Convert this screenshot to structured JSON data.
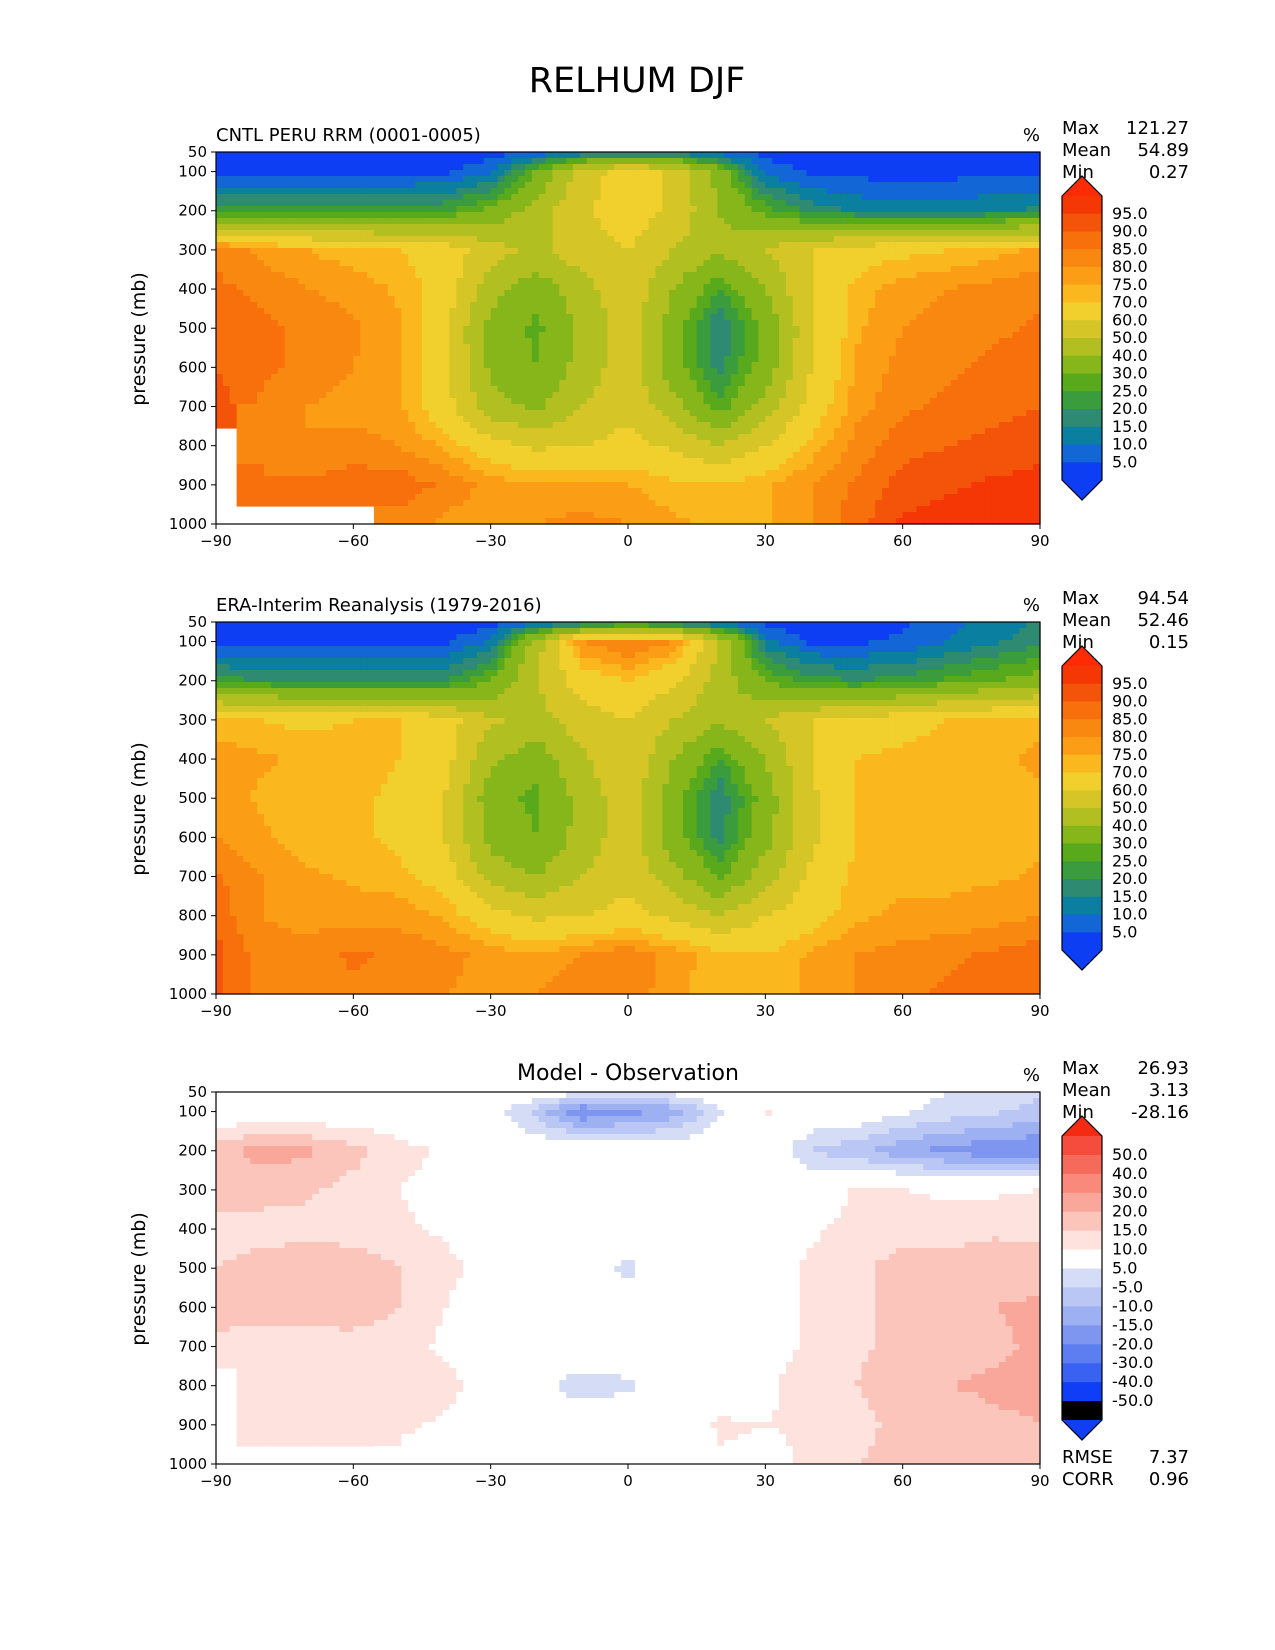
{
  "title": "RELHUM DJF",
  "colors": {
    "field": [
      "#0e3ef4",
      "#1266d6",
      "#0a7fa0",
      "#2f8a72",
      "#3b9c3e",
      "#58a91c",
      "#86b61a",
      "#b1c020",
      "#d5c526",
      "#f1cf2c",
      "#fbb81e",
      "#fb9e15",
      "#f98811",
      "#f7700c",
      "#f45409",
      "#f43705",
      "#ff2b04"
    ],
    "diff": [
      "#0f3ef6",
      "#3a62f2",
      "#5d7ef0",
      "#7f96f0",
      "#9db0f2",
      "#bac6f4",
      "#d5ddf6",
      "#ffffff",
      "#fde2de",
      "#fbc5bb",
      "#f9a79a",
      "#f8897b",
      "#f66a5c",
      "#f54c3e",
      "#f42b12"
    ]
  },
  "panels": [
    {
      "title": "CNTL PERU RRM (0001-0005)",
      "units": "%",
      "stats": {
        "max_label": "Max",
        "max_value": "121.27",
        "mean_label": "Mean",
        "mean_value": "54.89",
        "min_label": "Min",
        "min_value": "0.27"
      },
      "ylabel": "pressure (mb)",
      "colorbar": {
        "palette": "field",
        "labels": [
          "95.0",
          "90.0",
          "85.0",
          "80.0",
          "75.0",
          "70.0",
          "60.0",
          "50.0",
          "40.0",
          "30.0",
          "25.0",
          "20.0",
          "15.0",
          "10.0",
          "5.0"
        ]
      }
    },
    {
      "title": "ERA-Interim Reanalysis (1979-2016)",
      "units": "%",
      "stats": {
        "max_label": "Max",
        "max_value": "94.54",
        "mean_label": "Mean",
        "mean_value": "52.46",
        "min_label": "Min",
        "min_value": "0.15"
      },
      "ylabel": "pressure (mb)",
      "colorbar": {
        "palette": "field",
        "labels": [
          "95.0",
          "90.0",
          "85.0",
          "80.0",
          "75.0",
          "70.0",
          "60.0",
          "50.0",
          "40.0",
          "30.0",
          "25.0",
          "20.0",
          "15.0",
          "10.0",
          "5.0"
        ]
      }
    },
    {
      "title": "Model - Observation",
      "units": "%",
      "stats": {
        "max_label": "Max",
        "max_value": "26.93",
        "mean_label": "Mean",
        "mean_value": "3.13",
        "min_label": "Min",
        "min_value": "-28.16"
      },
      "ylabel": "pressure (mb)",
      "colorbar": {
        "palette": "diff",
        "labels": [
          "50.0",
          "40.0",
          "30.0",
          "20.0",
          "15.0",
          "10.0",
          "5.0",
          "-5.0",
          "-10.0",
          "-15.0",
          "-20.0",
          "-30.0",
          "-40.0",
          "-50.0"
        ]
      },
      "extra": {
        "rmse_label": "RMSE",
        "rmse_value": "7.37",
        "corr_label": "CORR",
        "corr_value": "0.96"
      }
    }
  ],
  "chart_data": [
    {
      "type": "heatmap",
      "title": "CNTL PERU RRM (0001-0005)",
      "xlabel": "",
      "ylabel": "pressure (mb)",
      "x_ticks": [
        -90,
        -60,
        -30,
        0,
        30,
        60,
        90
      ],
      "x_tick_labels": [
        "−90",
        "−60",
        "−30",
        "0",
        "30",
        "60",
        "90"
      ],
      "y_ticks": [
        50,
        100,
        200,
        300,
        400,
        500,
        600,
        700,
        800,
        900,
        1000
      ],
      "y_tick_labels": [
        "50",
        "100",
        "200",
        "300",
        "400",
        "500",
        "600",
        "700",
        "800",
        "900",
        "1000"
      ],
      "xlim": [
        -90,
        90
      ],
      "ylim": [
        1000,
        50
      ],
      "levels": [
        5,
        10,
        15,
        20,
        25,
        30,
        40,
        50,
        60,
        70,
        75,
        80,
        85,
        90,
        95
      ],
      "lat": [
        -90,
        -80,
        -70,
        -60,
        -50,
        -40,
        -30,
        -20,
        -10,
        0,
        10,
        20,
        30,
        40,
        50,
        60,
        70,
        80,
        90
      ],
      "pressure": [
        50,
        100,
        200,
        300,
        400,
        500,
        600,
        700,
        800,
        900,
        1000
      ],
      "values": [
        [
          2,
          2,
          2,
          2,
          2,
          2,
          3,
          5,
          8,
          12,
          10,
          6,
          3,
          2,
          2,
          2,
          2,
          3,
          3
        ],
        [
          3,
          3,
          3,
          3,
          3,
          4,
          8,
          30,
          55,
          65,
          58,
          35,
          8,
          4,
          3,
          3,
          3,
          4,
          4
        ],
        [
          22,
          22,
          22,
          22,
          22,
          24,
          32,
          45,
          58,
          66,
          58,
          40,
          28,
          18,
          14,
          12,
          12,
          14,
          16
        ],
        [
          84,
          78,
          75,
          72,
          70,
          66,
          54,
          48,
          56,
          60,
          50,
          42,
          50,
          60,
          66,
          68,
          70,
          73,
          76
        ],
        [
          86,
          84,
          80,
          78,
          74,
          66,
          44,
          34,
          46,
          58,
          40,
          24,
          40,
          60,
          72,
          78,
          80,
          82,
          84
        ],
        [
          88,
          86,
          84,
          81,
          76,
          62,
          36,
          28,
          42,
          56,
          34,
          15,
          32,
          58,
          74,
          80,
          82,
          84,
          86
        ],
        [
          90,
          86,
          84,
          80,
          76,
          62,
          38,
          30,
          44,
          56,
          34,
          18,
          34,
          60,
          76,
          82,
          84,
          86,
          88
        ],
        [
          93,
          84,
          80,
          78,
          76,
          64,
          44,
          38,
          50,
          58,
          44,
          26,
          44,
          64,
          78,
          84,
          86,
          88,
          90
        ],
        [
          null,
          80,
          80,
          82,
          80,
          74,
          64,
          58,
          60,
          63,
          58,
          50,
          60,
          72,
          82,
          88,
          90,
          92,
          94
        ],
        [
          null,
          86,
          86,
          88,
          88,
          84,
          78,
          76,
          75,
          75,
          72,
          70,
          74,
          80,
          86,
          92,
          94,
          96,
          96
        ],
        [
          null,
          null,
          null,
          null,
          84,
          78,
          78,
          80,
          82,
          80,
          76,
          74,
          74,
          80,
          88,
          96,
          98,
          98,
          98
        ]
      ]
    },
    {
      "type": "heatmap",
      "title": "ERA-Interim Reanalysis (1979-2016)",
      "xlabel": "",
      "ylabel": "pressure (mb)",
      "x_ticks": [
        -90,
        -60,
        -30,
        0,
        30,
        60,
        90
      ],
      "x_tick_labels": [
        "−90",
        "−60",
        "−30",
        "0",
        "30",
        "60",
        "90"
      ],
      "y_ticks": [
        50,
        100,
        200,
        300,
        400,
        500,
        600,
        700,
        800,
        900,
        1000
      ],
      "y_tick_labels": [
        "50",
        "100",
        "200",
        "300",
        "400",
        "500",
        "600",
        "700",
        "800",
        "900",
        "1000"
      ],
      "xlim": [
        -90,
        90
      ],
      "ylim": [
        1000,
        50
      ],
      "levels": [
        5,
        10,
        15,
        20,
        25,
        30,
        40,
        50,
        60,
        70,
        75,
        80,
        85,
        90,
        95
      ],
      "lat": [
        -90,
        -80,
        -70,
        -60,
        -50,
        -40,
        -30,
        -20,
        -10,
        0,
        10,
        20,
        30,
        40,
        50,
        60,
        70,
        80,
        90
      ],
      "pressure": [
        50,
        100,
        200,
        300,
        400,
        500,
        600,
        700,
        800,
        900,
        1000
      ],
      "values": [
        [
          2,
          2,
          2,
          2,
          2,
          2,
          3,
          6,
          10,
          16,
          12,
          6,
          3,
          2,
          2,
          4,
          8,
          12,
          16
        ],
        [
          3,
          3,
          3,
          3,
          3,
          4,
          10,
          45,
          80,
          86,
          80,
          50,
          12,
          4,
          4,
          6,
          10,
          14,
          18
        ],
        [
          22,
          20,
          18,
          18,
          18,
          20,
          30,
          50,
          65,
          70,
          62,
          45,
          30,
          22,
          20,
          22,
          26,
          30,
          34
        ],
        [
          72,
          70,
          68,
          70,
          70,
          64,
          52,
          46,
          56,
          60,
          50,
          42,
          50,
          60,
          64,
          66,
          70,
          72,
          74
        ],
        [
          78,
          76,
          74,
          74,
          70,
          64,
          42,
          34,
          48,
          60,
          40,
          24,
          40,
          60,
          70,
          72,
          74,
          74,
          76
        ],
        [
          78,
          74,
          72,
          72,
          68,
          60,
          34,
          28,
          44,
          56,
          34,
          16,
          34,
          58,
          70,
          72,
          72,
          72,
          74
        ],
        [
          80,
          76,
          72,
          72,
          68,
          60,
          36,
          30,
          44,
          56,
          34,
          18,
          36,
          58,
          70,
          72,
          72,
          72,
          74
        ],
        [
          86,
          80,
          76,
          74,
          72,
          66,
          46,
          40,
          50,
          58,
          44,
          28,
          46,
          62,
          72,
          74,
          74,
          74,
          76
        ],
        [
          88,
          80,
          78,
          78,
          78,
          74,
          64,
          58,
          60,
          63,
          58,
          50,
          60,
          66,
          74,
          76,
          76,
          78,
          80
        ],
        [
          92,
          82,
          82,
          86,
          84,
          82,
          78,
          76,
          80,
          84,
          78,
          72,
          70,
          76,
          80,
          82,
          84,
          86,
          88
        ],
        [
          92,
          82,
          82,
          84,
          82,
          80,
          78,
          80,
          84,
          84,
          76,
          72,
          72,
          76,
          80,
          84,
          86,
          88,
          90
        ]
      ]
    },
    {
      "type": "heatmap",
      "title": "Model - Observation",
      "xlabel": "",
      "ylabel": "pressure (mb)",
      "x_ticks": [
        -90,
        -60,
        -30,
        0,
        30,
        60,
        90
      ],
      "x_tick_labels": [
        "−90",
        "−60",
        "−30",
        "0",
        "30",
        "60",
        "90"
      ],
      "y_ticks": [
        50,
        100,
        200,
        300,
        400,
        500,
        600,
        700,
        800,
        900,
        1000
      ],
      "y_tick_labels": [
        "50",
        "100",
        "200",
        "300",
        "400",
        "500",
        "600",
        "700",
        "800",
        "900",
        "1000"
      ],
      "xlim": [
        -90,
        90
      ],
      "ylim": [
        1000,
        50
      ],
      "levels": [
        -50,
        -40,
        -30,
        -20,
        -15,
        -10,
        -5,
        5,
        10,
        15,
        20,
        30,
        40,
        50
      ],
      "lat": [
        -90,
        -80,
        -70,
        -60,
        -50,
        -40,
        -30,
        -20,
        -10,
        0,
        10,
        20,
        30,
        40,
        50,
        60,
        70,
        80,
        90
      ],
      "pressure": [
        50,
        100,
        200,
        300,
        400,
        500,
        600,
        700,
        800,
        900,
        1000
      ],
      "values": [
        [
          0,
          0,
          0,
          0,
          0,
          0,
          0,
          0,
          -4,
          -6,
          -3,
          0,
          0,
          0,
          0,
          -3,
          -5,
          -8,
          -9
        ],
        [
          0,
          0,
          0,
          0,
          0,
          0,
          -2,
          -12,
          -25,
          -22,
          -18,
          -6,
          6,
          0,
          0,
          -4,
          -7,
          -9,
          -12
        ],
        [
          13,
          17,
          16,
          12,
          7,
          4,
          0,
          0,
          0,
          0,
          0,
          0,
          0,
          -10,
          -14,
          -19,
          -22,
          -24,
          -25
        ],
        [
          12,
          12,
          11,
          8,
          5,
          3,
          0,
          0,
          0,
          0,
          0,
          0,
          0,
          0,
          6,
          5,
          4,
          4,
          5
        ],
        [
          8,
          8,
          8,
          7,
          6,
          4,
          1,
          0,
          -2,
          -3,
          0,
          0,
          1,
          4,
          7,
          8,
          8,
          9,
          9
        ],
        [
          10,
          12,
          14,
          14,
          10,
          7,
          2,
          0,
          -2,
          -6,
          0,
          0,
          2,
          6,
          9,
          12,
          12,
          13,
          12
        ],
        [
          12,
          12,
          14,
          14,
          10,
          5,
          1,
          0,
          -2,
          -3,
          0,
          0,
          2,
          6,
          9,
          12,
          13,
          15,
          16
        ],
        [
          9,
          7,
          6,
          7,
          7,
          4,
          0,
          0,
          0,
          0,
          0,
          0,
          2,
          6,
          9,
          12,
          13,
          14,
          16
        ],
        [
          null,
          6,
          5,
          9,
          10,
          7,
          2,
          -3,
          -8,
          -6,
          -3,
          0,
          3,
          10,
          10,
          14,
          15,
          16,
          16
        ],
        [
          null,
          6,
          6,
          5,
          6,
          4,
          1,
          0,
          0,
          0,
          0,
          6,
          5,
          6,
          8,
          12,
          12,
          14,
          15
        ],
        [
          null,
          null,
          null,
          null,
          3,
          2,
          1,
          0,
          0,
          0,
          0,
          4,
          3,
          6,
          10,
          12,
          13,
          13,
          15
        ]
      ]
    }
  ]
}
